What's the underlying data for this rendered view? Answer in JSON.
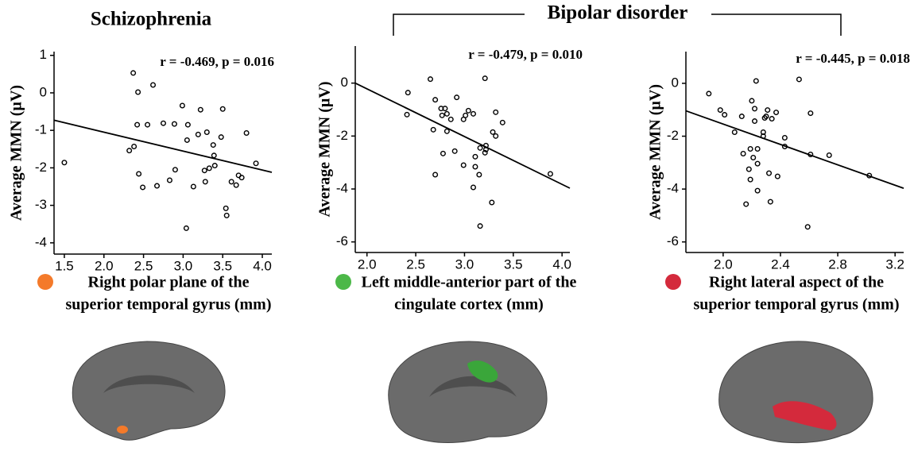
{
  "headers": {
    "left": "Schizophrenia",
    "right": "Bipolar disorder"
  },
  "chart_data": [
    {
      "type": "scatter",
      "annotation": "r = -0.469, p = 0.016",
      "y_label": "Average MMN (µV)",
      "x_label": [
        "Right polar plane of the",
        "superior temporal gyrus (mm)"
      ],
      "legend_color": "#f47a2a",
      "xlim": [
        1.37,
        4.12
      ],
      "ylim": [
        -4.3,
        1.1
      ],
      "xticks": [
        1.5,
        {
          "value": 2,
          "label": "2.0"
        },
        2.5,
        {
          "value": 3,
          "label": "3.0"
        },
        3.5,
        {
          "value": 4,
          "label": "4.0"
        }
      ],
      "yticks": [
        1,
        0,
        -1,
        -2,
        -3,
        -4
      ],
      "series": [
        {
          "color": "#000000",
          "x": [
            1.5,
            2.37,
            2.43,
            2.62,
            2.42,
            2.55,
            2.75,
            2.89,
            2.99,
            3.06,
            3.22,
            3.5,
            3.19,
            3.05,
            3.3,
            3.38,
            3.48,
            3.8,
            3.39,
            2.32,
            2.38,
            3.33,
            3.27,
            3.4,
            3.92,
            2.9,
            2.44,
            3.7,
            3.74,
            3.61,
            3.67,
            2.83,
            2.67,
            2.49,
            3.13,
            3.28,
            3.54,
            3.04,
            3.55
          ],
          "values": [
            -1.86,
            0.53,
            0.02,
            0.21,
            -0.85,
            -0.85,
            -0.81,
            -0.83,
            -0.34,
            -0.85,
            -0.45,
            -0.43,
            -1.11,
            -1.26,
            -1.05,
            -1.39,
            -1.18,
            -1.07,
            -1.67,
            -1.54,
            -1.43,
            -2.01,
            -2.07,
            -1.94,
            -1.88,
            -2.05,
            -2.16,
            -2.2,
            -2.26,
            -2.37,
            -2.46,
            -2.33,
            -2.48,
            -2.52,
            -2.5,
            -2.37,
            -3.08,
            -3.61,
            -3.27
          ]
        }
      ],
      "fit": {
        "color": "#000000",
        "x": [
          1.37,
          4.12
        ],
        "values": [
          -0.73,
          -2.12
        ]
      }
    },
    {
      "type": "scatter",
      "annotation": "r = -0.479, p = 0.010",
      "y_label": "Average MMN (µV)",
      "x_label": [
        "Left middle-anterior part of the",
        "cingulate cortex (mm)"
      ],
      "legend_color": "#4cb848",
      "xlim": [
        1.88,
        4.08
      ],
      "ylim": [
        -6.4,
        1.4
      ],
      "xticks": [
        {
          "value": 2,
          "label": "2.0"
        },
        2.5,
        {
          "value": 3,
          "label": "3.0"
        },
        3.5,
        {
          "value": 4,
          "label": "4.0"
        }
      ],
      "yticks": [
        0,
        -2,
        -4,
        -6
      ],
      "series": [
        {
          "color": "#000000",
          "x": [
            2.42,
            2.41,
            2.65,
            2.7,
            2.76,
            2.8,
            2.77,
            2.82,
            2.86,
            2.92,
            3.01,
            3.04,
            2.99,
            3.09,
            3.21,
            3.32,
            3.39,
            3.29,
            3.32,
            3.22,
            3.22,
            3.21,
            3.16,
            3.11,
            3.11,
            3.15,
            3.09,
            3.28,
            3.16,
            2.7,
            2.68,
            2.78,
            2.9,
            2.99,
            3.88,
            2.82
          ],
          "values": [
            -0.36,
            -1.19,
            0.15,
            -0.63,
            -0.96,
            -0.96,
            -1.22,
            -1.16,
            -1.37,
            -0.54,
            -1.22,
            -1.04,
            -1.37,
            -1.16,
            0.18,
            -1.1,
            -1.49,
            -1.85,
            -2,
            -2.36,
            -2.51,
            -2.63,
            -2.45,
            -2.78,
            -3.16,
            -3.46,
            -3.94,
            -4.51,
            -5.4,
            -3.46,
            -1.76,
            -2.66,
            -2.57,
            -3.1,
            -3.43,
            -1.82
          ]
        }
      ],
      "fit": {
        "color": "#000000",
        "x": [
          1.88,
          4.08
        ],
        "values": [
          0,
          -3.97
        ]
      }
    },
    {
      "type": "scatter",
      "annotation": "r = -0.445, p = 0.018",
      "y_label": "Average MMN (µV)",
      "x_label": [
        "Right lateral aspect of the",
        "superior temporal gyrus (mm)"
      ],
      "legend_color": "#d42a3c",
      "xlim": [
        1.74,
        3.26
      ],
      "ylim": [
        -6.4,
        1.2
      ],
      "xticks": [
        {
          "value": 2,
          "label": "2.0"
        },
        2.4,
        2.8,
        3.2
      ],
      "yticks": [
        0,
        -2,
        -4,
        -6
      ],
      "series": [
        {
          "color": "#000000",
          "x": [
            1.9,
            1.98,
            2.01,
            2.08,
            2.13,
            2.2,
            2.23,
            2.22,
            2.22,
            2.3,
            2.31,
            2.29,
            2.37,
            2.34,
            2.28,
            2.28,
            2.19,
            2.24,
            2.14,
            2.21,
            2.24,
            2.18,
            2.32,
            2.38,
            2.19,
            2.24,
            2.16,
            2.33,
            2.43,
            2.43,
            2.53,
            2.61,
            2.61,
            2.74,
            2.59,
            3.02
          ],
          "values": [
            -0.39,
            -1.01,
            -1.19,
            -1.85,
            -1.25,
            -0.66,
            0.09,
            -0.96,
            -1.43,
            -1.25,
            -1.01,
            -1.31,
            -1.1,
            -1.34,
            -1.85,
            -2,
            -2.48,
            -2.48,
            -2.66,
            -2.81,
            -3.04,
            -3.25,
            -3.4,
            -3.52,
            -3.64,
            -4.06,
            -4.57,
            -4.48,
            -2.06,
            -2.39,
            0.15,
            -1.13,
            -2.69,
            -2.72,
            -5.43,
            -3.49
          ]
        }
      ],
      "fit": {
        "color": "#000000",
        "x": [
          1.74,
          3.26
        ],
        "values": [
          -1.04,
          -3.97
        ]
      }
    }
  ]
}
